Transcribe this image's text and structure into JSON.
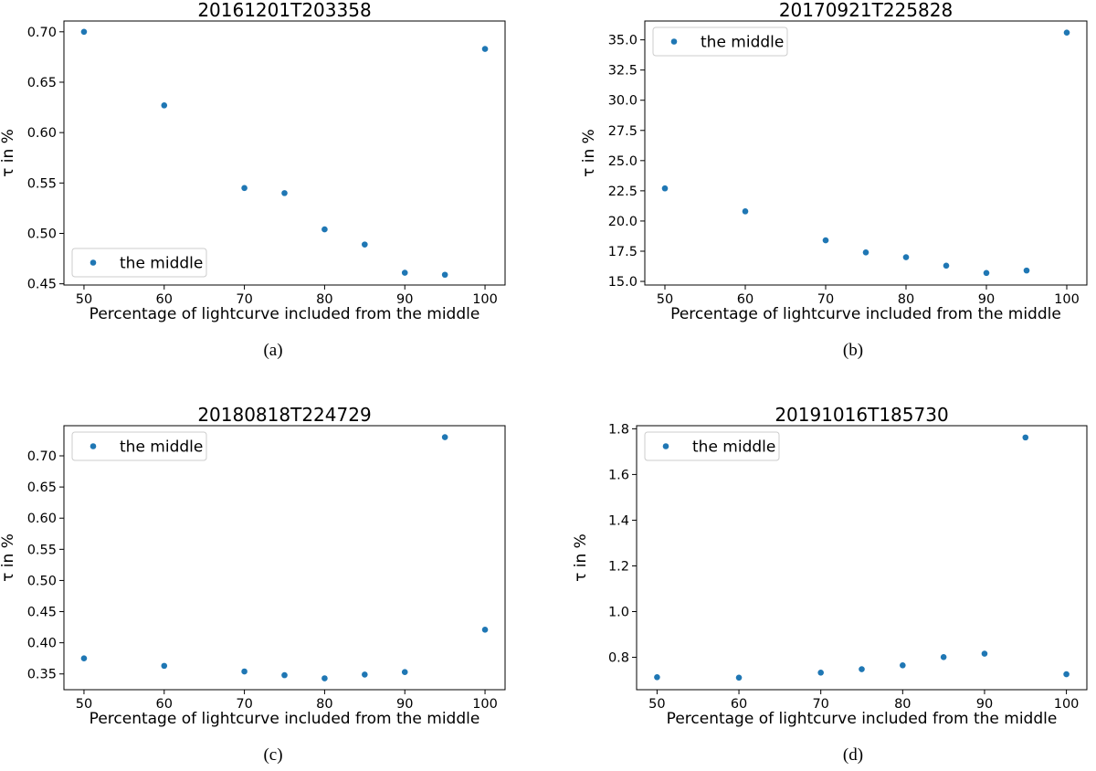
{
  "chart_data": [
    {
      "type": "scatter",
      "title": "20161201T203358",
      "xlabel": "Percentage of lightcurve included from the middle",
      "ylabel": "τ in %",
      "caption": "(a)",
      "xlim": [
        47.5,
        102.5
      ],
      "ylim": [
        0.4488,
        0.7107
      ],
      "xticks": [
        50,
        60,
        70,
        80,
        90,
        100
      ],
      "yticks": [
        0.45,
        0.5,
        0.55,
        0.6,
        0.65,
        0.7
      ],
      "ytick_labels": [
        "0.45",
        "0.50",
        "0.55",
        "0.60",
        "0.65",
        "0.70"
      ],
      "legend": {
        "label": "the middle",
        "placement": "lower-left"
      },
      "marker_color": "#1f77b4",
      "series": [
        {
          "name": "the middle",
          "x": [
            50,
            60,
            70,
            75,
            80,
            85,
            90,
            95,
            100
          ],
          "y": [
            0.7,
            0.627,
            0.545,
            0.54,
            0.504,
            0.489,
            0.461,
            0.459,
            0.683
          ]
        }
      ]
    },
    {
      "type": "scatter",
      "title": "20170921T225828",
      "xlabel": "Percentage of lightcurve included from the middle",
      "ylabel": "τ in %",
      "caption": "(b)",
      "xlim": [
        47.5,
        102.5
      ],
      "ylim": [
        14.7,
        36.56
      ],
      "xticks": [
        50,
        60,
        70,
        80,
        90,
        100
      ],
      "yticks": [
        15.0,
        17.5,
        20.0,
        22.5,
        25.0,
        27.5,
        30.0,
        32.5,
        35.0
      ],
      "ytick_labels": [
        "15.0",
        "17.5",
        "20.0",
        "22.5",
        "25.0",
        "27.5",
        "30.0",
        "32.5",
        "35.0"
      ],
      "legend": {
        "label": "the middle",
        "placement": "upper-left"
      },
      "marker_color": "#1f77b4",
      "series": [
        {
          "name": "the middle",
          "x": [
            50,
            60,
            70,
            75,
            80,
            85,
            90,
            95,
            100
          ],
          "y": [
            22.7,
            20.8,
            18.4,
            17.4,
            17.0,
            16.3,
            15.7,
            15.9,
            35.6
          ]
        }
      ]
    },
    {
      "type": "scatter",
      "title": "20180818T224729",
      "xlabel": "Percentage of lightcurve included from the middle",
      "ylabel": "τ in %",
      "caption": "(c)",
      "xlim": [
        47.5,
        102.5
      ],
      "ylim": [
        0.3247,
        0.7484
      ],
      "xticks": [
        50,
        60,
        70,
        80,
        90,
        100
      ],
      "yticks": [
        0.35,
        0.4,
        0.45,
        0.5,
        0.55,
        0.6,
        0.65,
        0.7
      ],
      "ytick_labels": [
        "0.35",
        "0.40",
        "0.45",
        "0.50",
        "0.55",
        "0.60",
        "0.65",
        "0.70"
      ],
      "legend": {
        "label": "the middle",
        "placement": "upper-left"
      },
      "marker_color": "#1f77b4",
      "series": [
        {
          "name": "the middle",
          "x": [
            50,
            60,
            70,
            75,
            80,
            85,
            90,
            95,
            100
          ],
          "y": [
            0.375,
            0.363,
            0.354,
            0.348,
            0.343,
            0.349,
            0.353,
            0.73,
            0.421
          ]
        }
      ]
    },
    {
      "type": "scatter",
      "title": "20191016T185730",
      "xlabel": "Percentage of lightcurve included from the middle",
      "ylabel": "τ in %",
      "caption": "(d)",
      "xlim": [
        47.5,
        102.5
      ],
      "ylim": [
        0.6582,
        1.8135
      ],
      "xticks": [
        50,
        60,
        70,
        80,
        90,
        100
      ],
      "yticks": [
        0.8,
        1.0,
        1.2,
        1.4,
        1.6,
        1.8
      ],
      "ytick_labels": [
        "0.8",
        "1.0",
        "1.2",
        "1.4",
        "1.6",
        "1.8"
      ],
      "legend": {
        "label": "the middle",
        "placement": "upper-left"
      },
      "marker_color": "#1f77b4",
      "series": [
        {
          "name": "the middle",
          "x": [
            50,
            60,
            70,
            75,
            80,
            85,
            90,
            95,
            100
          ],
          "y": [
            0.713,
            0.711,
            0.733,
            0.748,
            0.765,
            0.801,
            0.816,
            1.762,
            0.726
          ]
        }
      ]
    }
  ]
}
